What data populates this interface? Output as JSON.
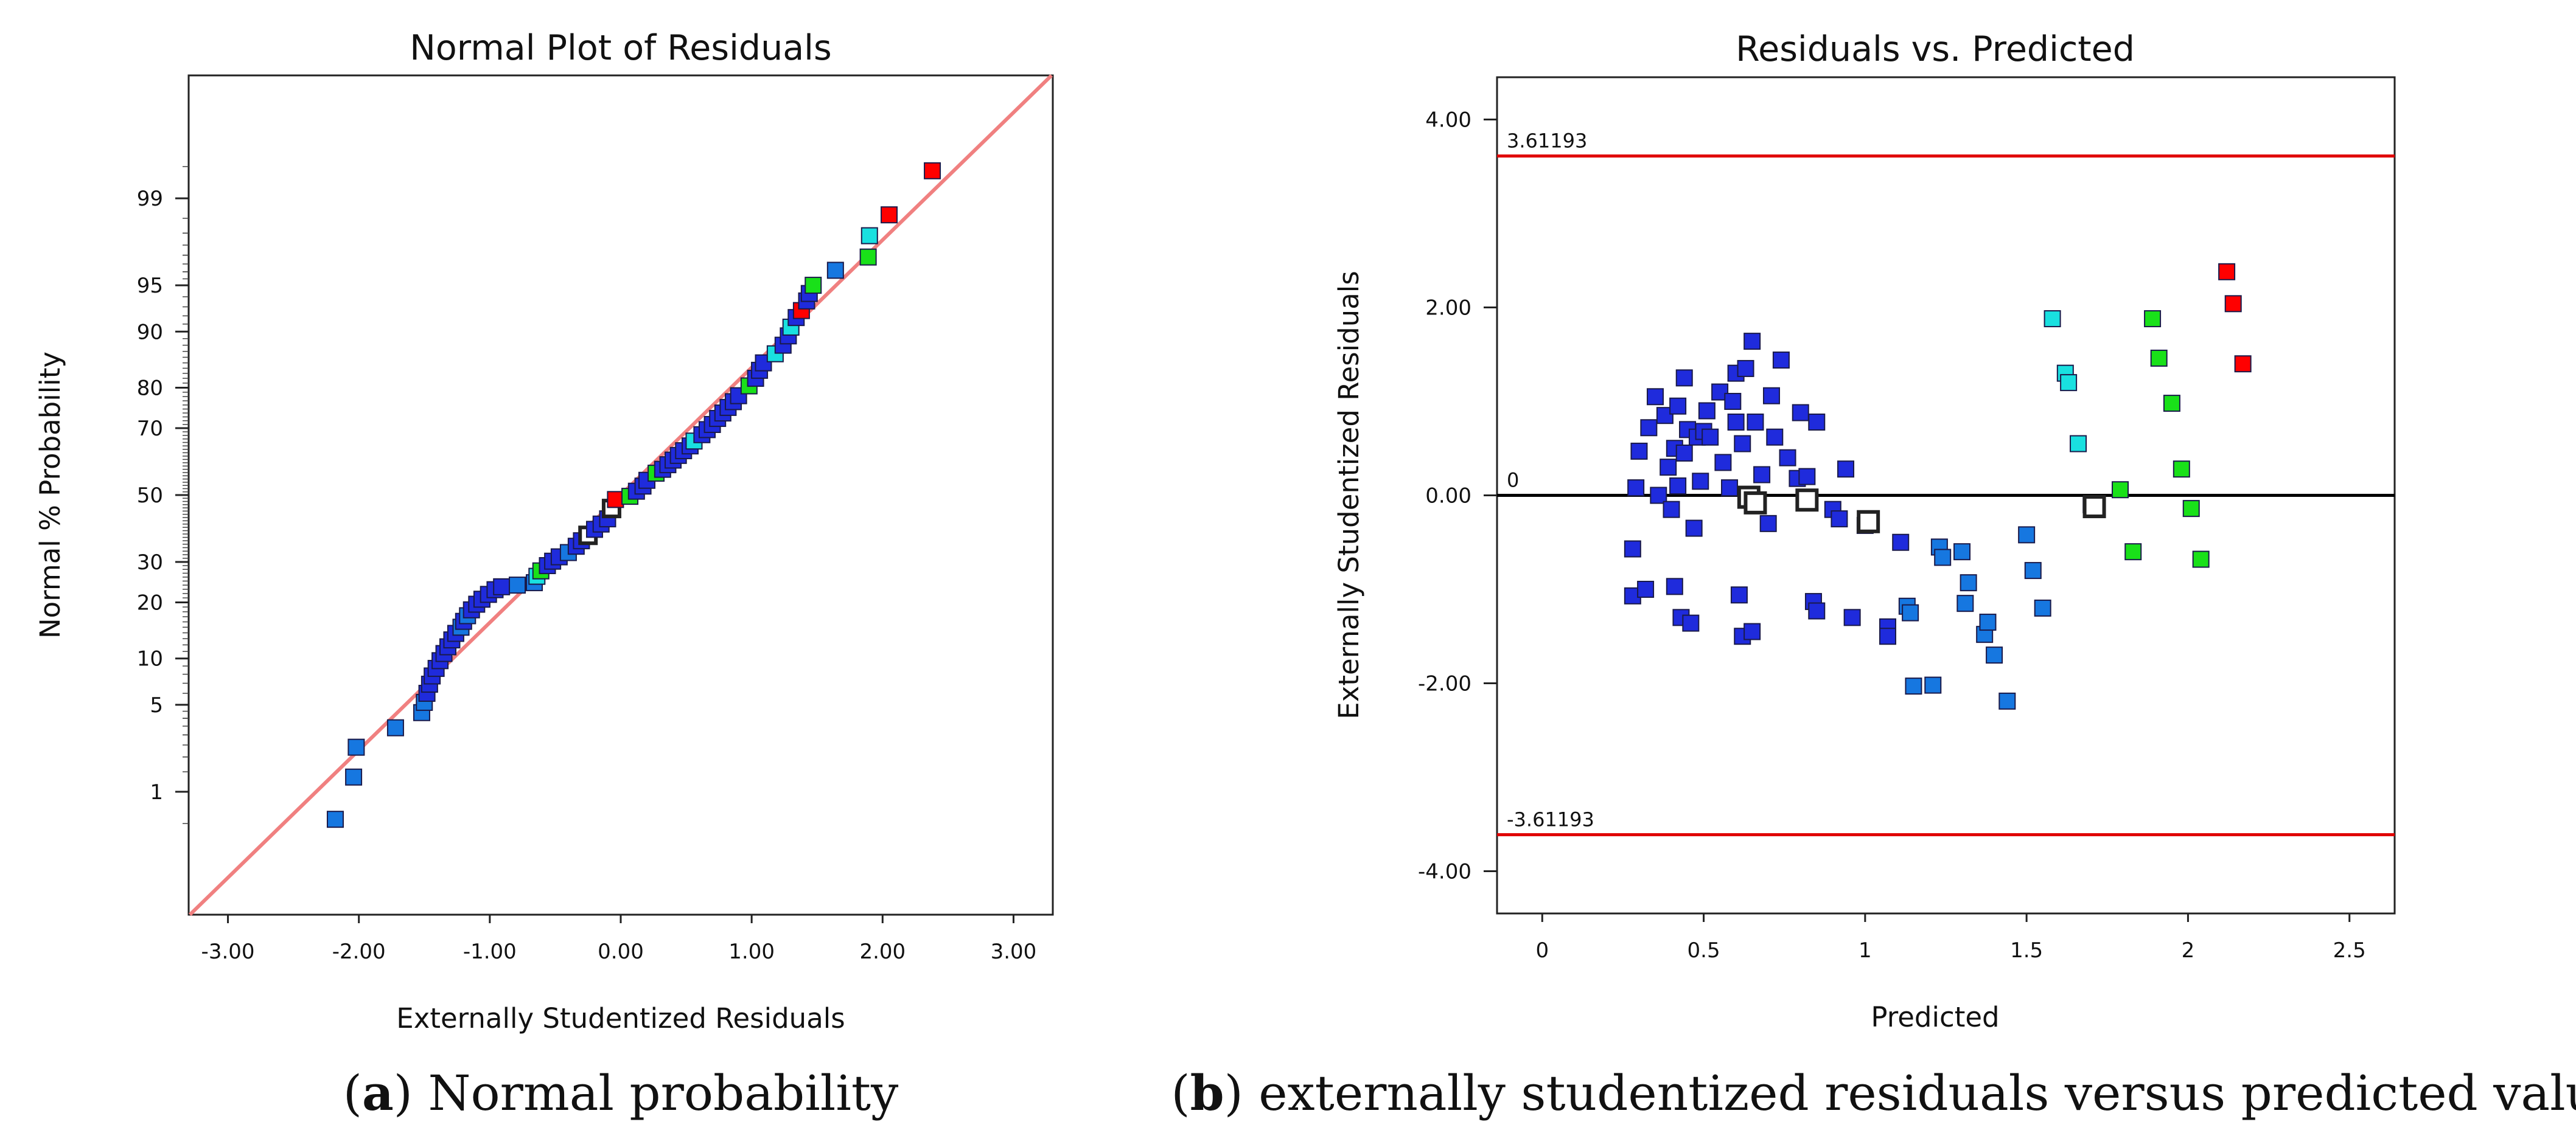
{
  "chart_data": [
    {
      "id": "a",
      "type": "scatter",
      "title": "Normal Plot of Residuals",
      "xlabel": "Externally Studentized Residuals",
      "ylabel": "Normal % Probability",
      "xlim": [
        -3.3,
        3.3
      ],
      "x_ticks": [
        -3,
        -2,
        -1,
        0,
        1,
        2,
        3
      ],
      "x_tick_labels": [
        "-3.00",
        "-2.00",
        "-1.00",
        "0.00",
        "1.00",
        "2.00",
        "3.00"
      ],
      "y_scale": "normal-probability",
      "ylim_percent": [
        0.05,
        99.95
      ],
      "y_ticks": [
        1,
        5,
        10,
        20,
        30,
        50,
        70,
        80,
        90,
        95,
        99
      ],
      "y_tick_labels": [
        "1",
        "5",
        "10",
        "20",
        "30",
        "50",
        "70",
        "80",
        "90",
        "95",
        "99"
      ],
      "reference_line": {
        "slope": 1,
        "intercept": 0,
        "color": "#f08080"
      },
      "point_colors": {
        "low": "#1f2bdc",
        "mid": "#1677e0",
        "cyan": "#19e0e0",
        "green": "#19e019",
        "high": "#ff0000",
        "design": "#ffffff"
      },
      "points": [
        {
          "x": -2.18,
          "p": 0.55,
          "c": "mid"
        },
        {
          "x": -2.04,
          "p": 1.35,
          "c": "mid"
        },
        {
          "x": -2.02,
          "p": 2.4,
          "c": "mid"
        },
        {
          "x": -1.72,
          "p": 3.4,
          "c": "mid"
        },
        {
          "x": -1.52,
          "p": 4.4,
          "c": "mid"
        },
        {
          "x": -1.5,
          "p": 5.2,
          "c": "mid"
        },
        {
          "x": -1.48,
          "p": 6.0,
          "c": "low"
        },
        {
          "x": -1.46,
          "p": 6.9,
          "c": "low"
        },
        {
          "x": -1.44,
          "p": 7.8,
          "c": "low"
        },
        {
          "x": -1.41,
          "p": 8.7,
          "c": "low"
        },
        {
          "x": -1.38,
          "p": 9.7,
          "c": "low"
        },
        {
          "x": -1.35,
          "p": 10.7,
          "c": "low"
        },
        {
          "x": -1.32,
          "p": 11.7,
          "c": "low"
        },
        {
          "x": -1.29,
          "p": 12.8,
          "c": "low"
        },
        {
          "x": -1.26,
          "p": 13.9,
          "c": "low"
        },
        {
          "x": -1.22,
          "p": 15.0,
          "c": "mid"
        },
        {
          "x": -1.2,
          "p": 16.1,
          "c": "low"
        },
        {
          "x": -1.17,
          "p": 17.2,
          "c": "mid"
        },
        {
          "x": -1.14,
          "p": 18.4,
          "c": "low"
        },
        {
          "x": -1.1,
          "p": 19.6,
          "c": "low"
        },
        {
          "x": -1.06,
          "p": 20.7,
          "c": "low"
        },
        {
          "x": -1.01,
          "p": 21.8,
          "c": "low"
        },
        {
          "x": -0.96,
          "p": 22.9,
          "c": "low"
        },
        {
          "x": -0.91,
          "p": 23.6,
          "c": "low"
        },
        {
          "x": -0.79,
          "p": 24.0,
          "c": "mid"
        },
        {
          "x": -0.66,
          "p": 24.6,
          "c": "mid"
        },
        {
          "x": -0.64,
          "p": 26.2,
          "c": "cyan"
        },
        {
          "x": -0.61,
          "p": 27.6,
          "c": "green"
        },
        {
          "x": -0.56,
          "p": 29.0,
          "c": "low"
        },
        {
          "x": -0.52,
          "p": 30.2,
          "c": "low"
        },
        {
          "x": -0.47,
          "p": 31.4,
          "c": "low"
        },
        {
          "x": -0.4,
          "p": 32.6,
          "c": "mid"
        },
        {
          "x": -0.34,
          "p": 34.4,
          "c": "low"
        },
        {
          "x": -0.3,
          "p": 36.0,
          "c": "low"
        },
        {
          "x": -0.25,
          "p": 37.6,
          "c": "design"
        },
        {
          "x": -0.2,
          "p": 39.4,
          "c": "low"
        },
        {
          "x": -0.15,
          "p": 41.0,
          "c": "low"
        },
        {
          "x": -0.1,
          "p": 42.6,
          "c": "low"
        },
        {
          "x": -0.07,
          "p": 45.8,
          "c": "design"
        },
        {
          "x": -0.04,
          "p": 48.6,
          "c": "high"
        },
        {
          "x": 0.07,
          "p": 49.6,
          "c": "green"
        },
        {
          "x": 0.12,
          "p": 51.2,
          "c": "low"
        },
        {
          "x": 0.17,
          "p": 52.8,
          "c": "low"
        },
        {
          "x": 0.2,
          "p": 54.6,
          "c": "low"
        },
        {
          "x": 0.27,
          "p": 56.8,
          "c": "green"
        },
        {
          "x": 0.32,
          "p": 58.0,
          "c": "low"
        },
        {
          "x": 0.36,
          "p": 59.4,
          "c": "low"
        },
        {
          "x": 0.4,
          "p": 60.8,
          "c": "low"
        },
        {
          "x": 0.44,
          "p": 62.2,
          "c": "low"
        },
        {
          "x": 0.48,
          "p": 63.6,
          "c": "low"
        },
        {
          "x": 0.53,
          "p": 65.0,
          "c": "low"
        },
        {
          "x": 0.56,
          "p": 66.4,
          "c": "cyan"
        },
        {
          "x": 0.62,
          "p": 68.2,
          "c": "low"
        },
        {
          "x": 0.66,
          "p": 69.6,
          "c": "low"
        },
        {
          "x": 0.7,
          "p": 71.0,
          "c": "low"
        },
        {
          "x": 0.74,
          "p": 72.6,
          "c": "low"
        },
        {
          "x": 0.78,
          "p": 74.0,
          "c": "low"
        },
        {
          "x": 0.82,
          "p": 75.4,
          "c": "low"
        },
        {
          "x": 0.86,
          "p": 76.8,
          "c": "low"
        },
        {
          "x": 0.9,
          "p": 78.2,
          "c": "low"
        },
        {
          "x": 0.98,
          "p": 80.4,
          "c": "green"
        },
        {
          "x": 1.03,
          "p": 82.0,
          "c": "low"
        },
        {
          "x": 1.06,
          "p": 83.6,
          "c": "low"
        },
        {
          "x": 1.09,
          "p": 85.0,
          "c": "low"
        },
        {
          "x": 1.18,
          "p": 86.6,
          "c": "cyan"
        },
        {
          "x": 1.24,
          "p": 88.0,
          "c": "low"
        },
        {
          "x": 1.28,
          "p": 89.4,
          "c": "low"
        },
        {
          "x": 1.3,
          "p": 90.6,
          "c": "cyan"
        },
        {
          "x": 1.34,
          "p": 91.8,
          "c": "low"
        },
        {
          "x": 1.38,
          "p": 92.6,
          "c": "high"
        },
        {
          "x": 1.42,
          "p": 93.6,
          "c": "low"
        },
        {
          "x": 1.44,
          "p": 94.3,
          "c": "low"
        },
        {
          "x": 1.47,
          "p": 95.0,
          "c": "green"
        },
        {
          "x": 1.64,
          "p": 96.1,
          "c": "mid"
        },
        {
          "x": 1.89,
          "p": 96.9,
          "c": "green"
        },
        {
          "x": 1.9,
          "p": 97.9,
          "c": "cyan"
        },
        {
          "x": 2.05,
          "p": 98.6,
          "c": "high"
        },
        {
          "x": 2.38,
          "p": 99.45,
          "c": "high"
        }
      ]
    },
    {
      "id": "b",
      "type": "scatter",
      "title": "Residuals vs. Predicted",
      "xlabel": "Predicted",
      "ylabel": "Externally Studentized Residuals",
      "xlim": [
        -0.14,
        2.64
      ],
      "ylim": [
        -4.45,
        4.45
      ],
      "x_ticks": [
        0,
        0.5,
        1,
        1.5,
        2,
        2.5
      ],
      "x_tick_labels": [
        "0",
        "0.5",
        "1",
        "1.5",
        "2",
        "2.5"
      ],
      "y_ticks": [
        -4,
        -2,
        0,
        2,
        4
      ],
      "y_tick_labels": [
        "-4.00",
        "-2.00",
        "0.00",
        "2.00",
        "4.00"
      ],
      "limit_lines": [
        {
          "y": 3.61193,
          "label": "3.61193",
          "color": "#e00000"
        },
        {
          "y": 0,
          "label": "0",
          "color": "#000000"
        },
        {
          "y": -3.61193,
          "label": "-3.61193",
          "color": "#e00000"
        }
      ],
      "point_colors": {
        "low": "#1f2bdc",
        "mid": "#1677e0",
        "cyan": "#19e0e0",
        "green": "#19e019",
        "high": "#ff0000",
        "design": "#ffffff"
      },
      "points": [
        {
          "x": 0.28,
          "y": -1.07,
          "c": "low"
        },
        {
          "x": 0.28,
          "y": -0.57,
          "c": "low"
        },
        {
          "x": 0.29,
          "y": 0.08,
          "c": "low"
        },
        {
          "x": 0.3,
          "y": 0.47,
          "c": "low"
        },
        {
          "x": 0.32,
          "y": -1.0,
          "c": "low"
        },
        {
          "x": 0.33,
          "y": 0.72,
          "c": "low"
        },
        {
          "x": 0.35,
          "y": 1.05,
          "c": "low"
        },
        {
          "x": 0.36,
          "y": 0.0,
          "c": "low"
        },
        {
          "x": 0.38,
          "y": 0.85,
          "c": "low"
        },
        {
          "x": 0.39,
          "y": 0.3,
          "c": "low"
        },
        {
          "x": 0.4,
          "y": -0.15,
          "c": "low"
        },
        {
          "x": 0.41,
          "y": 0.5,
          "c": "low"
        },
        {
          "x": 0.41,
          "y": -0.97,
          "c": "low"
        },
        {
          "x": 0.42,
          "y": 0.95,
          "c": "low"
        },
        {
          "x": 0.42,
          "y": 0.1,
          "c": "low"
        },
        {
          "x": 0.43,
          "y": -1.3,
          "c": "low"
        },
        {
          "x": 0.44,
          "y": 0.45,
          "c": "low"
        },
        {
          "x": 0.44,
          "y": 1.25,
          "c": "low"
        },
        {
          "x": 0.45,
          "y": 0.7,
          "c": "low"
        },
        {
          "x": 0.46,
          "y": -1.36,
          "c": "low"
        },
        {
          "x": 0.47,
          "y": -0.35,
          "c": "low"
        },
        {
          "x": 0.48,
          "y": 0.62,
          "c": "low"
        },
        {
          "x": 0.49,
          "y": 0.15,
          "c": "low"
        },
        {
          "x": 0.5,
          "y": 0.68,
          "c": "low"
        },
        {
          "x": 0.51,
          "y": 0.9,
          "c": "low"
        },
        {
          "x": 0.52,
          "y": 0.62,
          "c": "low"
        },
        {
          "x": 0.55,
          "y": 1.1,
          "c": "low"
        },
        {
          "x": 0.56,
          "y": 0.35,
          "c": "low"
        },
        {
          "x": 0.58,
          "y": 0.08,
          "c": "low"
        },
        {
          "x": 0.59,
          "y": 1.0,
          "c": "low"
        },
        {
          "x": 0.6,
          "y": 0.78,
          "c": "low"
        },
        {
          "x": 0.6,
          "y": 1.3,
          "c": "low"
        },
        {
          "x": 0.61,
          "y": -1.06,
          "c": "low"
        },
        {
          "x": 0.62,
          "y": 0.55,
          "c": "low"
        },
        {
          "x": 0.62,
          "y": -1.5,
          "c": "low"
        },
        {
          "x": 0.63,
          "y": 1.35,
          "c": "low"
        },
        {
          "x": 0.64,
          "y": -0.02,
          "c": "design"
        },
        {
          "x": 0.65,
          "y": 1.64,
          "c": "low"
        },
        {
          "x": 0.65,
          "y": -1.45,
          "c": "low"
        },
        {
          "x": 0.66,
          "y": 0.78,
          "c": "low"
        },
        {
          "x": 0.66,
          "y": -0.08,
          "c": "design"
        },
        {
          "x": 0.68,
          "y": 0.22,
          "c": "low"
        },
        {
          "x": 0.7,
          "y": -0.3,
          "c": "low"
        },
        {
          "x": 0.71,
          "y": 1.06,
          "c": "low"
        },
        {
          "x": 0.72,
          "y": 0.62,
          "c": "low"
        },
        {
          "x": 0.74,
          "y": 1.44,
          "c": "low"
        },
        {
          "x": 0.76,
          "y": 0.4,
          "c": "low"
        },
        {
          "x": 0.79,
          "y": 0.18,
          "c": "low"
        },
        {
          "x": 0.8,
          "y": 0.88,
          "c": "low"
        },
        {
          "x": 0.82,
          "y": 0.2,
          "c": "low"
        },
        {
          "x": 0.82,
          "y": -0.05,
          "c": "design"
        },
        {
          "x": 0.84,
          "y": -1.13,
          "c": "low"
        },
        {
          "x": 0.85,
          "y": -1.23,
          "c": "low"
        },
        {
          "x": 0.85,
          "y": 0.78,
          "c": "low"
        },
        {
          "x": 0.9,
          "y": -0.15,
          "c": "low"
        },
        {
          "x": 0.92,
          "y": -0.25,
          "c": "low"
        },
        {
          "x": 0.94,
          "y": 0.28,
          "c": "low"
        },
        {
          "x": 0.96,
          "y": -1.3,
          "c": "low"
        },
        {
          "x": 1.0,
          "y": -0.32,
          "c": "low"
        },
        {
          "x": 1.01,
          "y": -0.28,
          "c": "design"
        },
        {
          "x": 1.07,
          "y": -1.4,
          "c": "low"
        },
        {
          "x": 1.07,
          "y": -1.5,
          "c": "low"
        },
        {
          "x": 1.11,
          "y": -0.5,
          "c": "low"
        },
        {
          "x": 1.13,
          "y": -1.18,
          "c": "mid"
        },
        {
          "x": 1.14,
          "y": -1.25,
          "c": "mid"
        },
        {
          "x": 1.15,
          "y": -2.03,
          "c": "mid"
        },
        {
          "x": 1.21,
          "y": -2.02,
          "c": "mid"
        },
        {
          "x": 1.23,
          "y": -0.55,
          "c": "mid"
        },
        {
          "x": 1.24,
          "y": -0.66,
          "c": "mid"
        },
        {
          "x": 1.3,
          "y": -0.6,
          "c": "mid"
        },
        {
          "x": 1.31,
          "y": -1.15,
          "c": "mid"
        },
        {
          "x": 1.32,
          "y": -0.93,
          "c": "mid"
        },
        {
          "x": 1.37,
          "y": -1.48,
          "c": "mid"
        },
        {
          "x": 1.38,
          "y": -1.35,
          "c": "mid"
        },
        {
          "x": 1.4,
          "y": -1.7,
          "c": "mid"
        },
        {
          "x": 1.44,
          "y": -2.19,
          "c": "mid"
        },
        {
          "x": 1.5,
          "y": -0.42,
          "c": "mid"
        },
        {
          "x": 1.52,
          "y": -0.8,
          "c": "mid"
        },
        {
          "x": 1.55,
          "y": -1.2,
          "c": "mid"
        },
        {
          "x": 1.58,
          "y": 1.88,
          "c": "cyan"
        },
        {
          "x": 1.62,
          "y": 1.3,
          "c": "cyan"
        },
        {
          "x": 1.63,
          "y": 1.2,
          "c": "cyan"
        },
        {
          "x": 1.66,
          "y": 0.55,
          "c": "cyan"
        },
        {
          "x": 1.7,
          "y": -0.1,
          "c": "cyan"
        },
        {
          "x": 1.71,
          "y": -0.12,
          "c": "design"
        },
        {
          "x": 1.79,
          "y": 0.06,
          "c": "green"
        },
        {
          "x": 1.83,
          "y": -0.6,
          "c": "green"
        },
        {
          "x": 1.89,
          "y": 1.88,
          "c": "green"
        },
        {
          "x": 1.91,
          "y": 1.46,
          "c": "green"
        },
        {
          "x": 1.95,
          "y": 0.98,
          "c": "green"
        },
        {
          "x": 1.98,
          "y": 0.28,
          "c": "green"
        },
        {
          "x": 2.01,
          "y": -0.14,
          "c": "green"
        },
        {
          "x": 2.04,
          "y": -0.68,
          "c": "green"
        },
        {
          "x": 2.12,
          "y": 2.38,
          "c": "high"
        },
        {
          "x": 2.14,
          "y": 2.04,
          "c": "high"
        },
        {
          "x": 2.17,
          "y": 1.4,
          "c": "high"
        }
      ]
    }
  ],
  "captions": [
    {
      "label": "a",
      "open": "(",
      "close": ")",
      "text": " Normal probability"
    },
    {
      "label": "b",
      "open": "(",
      "close": ")",
      "text": " externally studentized residuals versus predicted values"
    }
  ]
}
